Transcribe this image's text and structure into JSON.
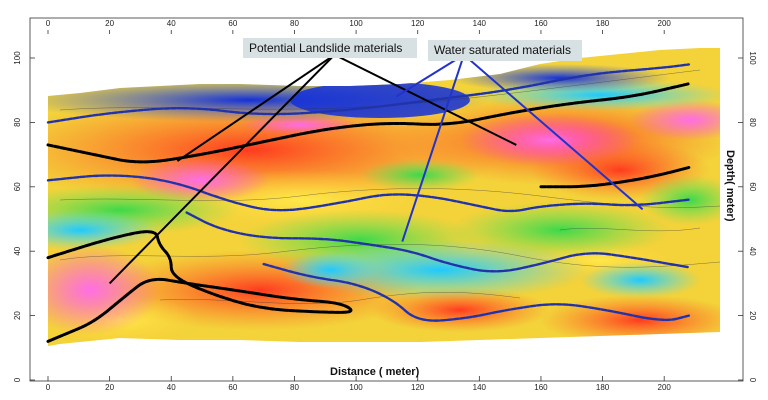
{
  "chart_data": {
    "type": "heatmap",
    "title": "",
    "xlabel": "Distance ( meter)",
    "ylabel": "Depth( meter)",
    "xlim": [
      0,
      210
    ],
    "ylim": [
      0,
      100
    ],
    "x_ticks": [
      "0",
      "20",
      "40",
      "60",
      "80",
      "100",
      "120",
      "140",
      "160",
      "180",
      "200"
    ],
    "y_ticks": [
      "0",
      "20",
      "40",
      "60",
      "80",
      "100"
    ],
    "colors": {
      "low_resistivity": "#1e4bd8",
      "mid_low": "#2fd2ff",
      "mid": "#5be25b",
      "mid_high": "#f5e84a",
      "high": "#ff4a24",
      "very_high": "#ff4fd8"
    },
    "annotations": [
      {
        "label": "Potential Landslide materials",
        "color": "#000000",
        "anchor": [
          93,
          101
        ],
        "targets": [
          [
            20,
            30
          ],
          [
            42,
            68
          ],
          [
            152,
            73
          ]
        ]
      },
      {
        "label": "Water saturated materials",
        "color": "#2233cc",
        "anchor": [
          135,
          101
        ],
        "targets": [
          [
            115,
            43
          ],
          [
            113,
            88
          ],
          [
            193,
            53
          ]
        ]
      }
    ],
    "contours": [
      {
        "kind": "landslide",
        "color": "#000000",
        "points": [
          [
            0,
            38
          ],
          [
            20,
            44
          ],
          [
            35,
            47
          ],
          [
            36,
            42
          ],
          [
            40,
            38
          ],
          [
            40,
            32
          ],
          [
            55,
            26
          ],
          [
            70,
            22
          ],
          [
            90,
            21
          ],
          [
            100,
            21
          ],
          [
            95,
            24
          ],
          [
            80,
            25
          ],
          [
            60,
            28
          ],
          [
            45,
            30
          ],
          [
            33,
            32
          ],
          [
            25,
            26
          ],
          [
            15,
            18
          ],
          [
            5,
            14
          ],
          [
            0,
            12
          ]
        ]
      },
      {
        "kind": "landslide",
        "color": "#000000",
        "points": [
          [
            0,
            73
          ],
          [
            15,
            70
          ],
          [
            30,
            67
          ],
          [
            50,
            70
          ],
          [
            70,
            74
          ],
          [
            90,
            78
          ],
          [
            110,
            80
          ],
          [
            130,
            79
          ],
          [
            150,
            83
          ],
          [
            170,
            86
          ],
          [
            190,
            88
          ],
          [
            208,
            92
          ]
        ]
      },
      {
        "kind": "landslide",
        "color": "#000000",
        "points": [
          [
            160,
            60
          ],
          [
            175,
            60
          ],
          [
            190,
            62
          ],
          [
            200,
            64
          ],
          [
            208,
            66
          ]
        ]
      },
      {
        "kind": "saturated",
        "color": "#2233aa",
        "points": [
          [
            0,
            62
          ],
          [
            20,
            64
          ],
          [
            40,
            62
          ],
          [
            60,
            55
          ],
          [
            75,
            52
          ],
          [
            95,
            55
          ],
          [
            110,
            58
          ],
          [
            125,
            57
          ],
          [
            140,
            54
          ],
          [
            150,
            52
          ],
          [
            160,
            54
          ],
          [
            175,
            55
          ],
          [
            190,
            54
          ],
          [
            208,
            56
          ]
        ]
      },
      {
        "kind": "saturated",
        "color": "#2233aa",
        "points": [
          [
            45,
            52
          ],
          [
            55,
            47
          ],
          [
            70,
            44
          ],
          [
            90,
            44
          ],
          [
            105,
            42
          ],
          [
            118,
            40
          ],
          [
            130,
            36
          ],
          [
            145,
            33
          ],
          [
            160,
            36
          ],
          [
            175,
            40
          ],
          [
            190,
            38
          ],
          [
            208,
            35
          ]
        ]
      },
      {
        "kind": "saturated",
        "color": "#2233aa",
        "points": [
          [
            70,
            36
          ],
          [
            85,
            32
          ],
          [
            100,
            30
          ],
          [
            112,
            25
          ],
          [
            120,
            18
          ],
          [
            135,
            19
          ],
          [
            150,
            22
          ],
          [
            165,
            24
          ],
          [
            180,
            22
          ],
          [
            200,
            18
          ],
          [
            208,
            20
          ]
        ]
      },
      {
        "kind": "saturated",
        "color": "#2233aa",
        "points": [
          [
            0,
            80
          ],
          [
            20,
            83
          ],
          [
            45,
            85
          ],
          [
            70,
            82
          ],
          [
            100,
            84
          ],
          [
            125,
            87
          ],
          [
            150,
            90
          ],
          [
            175,
            95
          ],
          [
            200,
            97
          ],
          [
            208,
            98
          ]
        ]
      }
    ]
  }
}
